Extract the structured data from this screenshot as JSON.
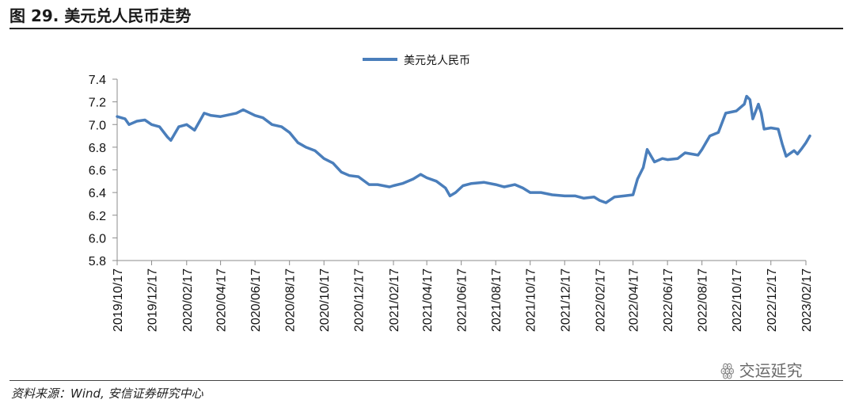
{
  "figure": {
    "title": "图 29. 美元兑人民币走势",
    "source": "资料来源：Wind, 安信证券研究中心",
    "watermark": "交运延究"
  },
  "colors": {
    "series": "#4a7ebb",
    "axis": "#8c8c8c",
    "text": "#111111"
  },
  "chart_data": {
    "type": "line",
    "title": "",
    "xlabel": "",
    "ylabel": "",
    "ylim": [
      5.8,
      7.4
    ],
    "grid": false,
    "legend": "top-center",
    "y_ticks": [
      5.8,
      6.0,
      6.2,
      6.4,
      6.6,
      6.8,
      7.0,
      7.2,
      7.4
    ],
    "x_ticks": [
      "2019/10/17",
      "2019/12/17",
      "2020/02/17",
      "2020/04/17",
      "2020/06/17",
      "2020/08/17",
      "2020/10/17",
      "2020/12/17",
      "2021/02/17",
      "2021/04/17",
      "2021/06/17",
      "2021/08/17",
      "2021/10/17",
      "2021/12/17",
      "2022/02/17",
      "2022/04/17",
      "2022/06/17",
      "2022/08/17",
      "2022/10/17",
      "2022/12/17",
      "2023/02/17"
    ],
    "series": [
      {
        "name": "美元兑人民币",
        "points": [
          [
            "2019-10-17",
            7.07
          ],
          [
            "2019-10-31",
            7.05
          ],
          [
            "2019-11-07",
            7.0
          ],
          [
            "2019-11-21",
            7.03
          ],
          [
            "2019-12-05",
            7.04
          ],
          [
            "2019-12-17",
            7.0
          ],
          [
            "2019-12-31",
            6.98
          ],
          [
            "2020-01-14",
            6.89
          ],
          [
            "2020-01-20",
            6.86
          ],
          [
            "2020-02-03",
            6.98
          ],
          [
            "2020-02-17",
            7.0
          ],
          [
            "2020-03-02",
            6.95
          ],
          [
            "2020-03-19",
            7.1
          ],
          [
            "2020-03-31",
            7.08
          ],
          [
            "2020-04-17",
            7.07
          ],
          [
            "2020-05-15",
            7.1
          ],
          [
            "2020-05-27",
            7.13
          ],
          [
            "2020-06-17",
            7.08
          ],
          [
            "2020-07-01",
            7.06
          ],
          [
            "2020-07-17",
            7.0
          ],
          [
            "2020-08-03",
            6.98
          ],
          [
            "2020-08-17",
            6.93
          ],
          [
            "2020-09-01",
            6.84
          ],
          [
            "2020-09-15",
            6.8
          ],
          [
            "2020-10-01",
            6.77
          ],
          [
            "2020-10-17",
            6.7
          ],
          [
            "2020-11-02",
            6.66
          ],
          [
            "2020-11-17",
            6.58
          ],
          [
            "2020-12-01",
            6.55
          ],
          [
            "2020-12-17",
            6.54
          ],
          [
            "2021-01-05",
            6.47
          ],
          [
            "2021-01-20",
            6.47
          ],
          [
            "2021-02-10",
            6.45
          ],
          [
            "2021-02-17",
            6.46
          ],
          [
            "2021-03-05",
            6.48
          ],
          [
            "2021-03-24",
            6.52
          ],
          [
            "2021-04-06",
            6.56
          ],
          [
            "2021-04-17",
            6.53
          ],
          [
            "2021-05-04",
            6.5
          ],
          [
            "2021-05-20",
            6.44
          ],
          [
            "2021-05-28",
            6.37
          ],
          [
            "2021-06-07",
            6.4
          ],
          [
            "2021-06-20",
            6.46
          ],
          [
            "2021-07-05",
            6.48
          ],
          [
            "2021-07-27",
            6.49
          ],
          [
            "2021-08-17",
            6.47
          ],
          [
            "2021-09-01",
            6.45
          ],
          [
            "2021-09-20",
            6.47
          ],
          [
            "2021-10-04",
            6.44
          ],
          [
            "2021-10-17",
            6.4
          ],
          [
            "2021-11-05",
            6.4
          ],
          [
            "2021-11-25",
            6.38
          ],
          [
            "2021-12-17",
            6.37
          ],
          [
            "2022-01-05",
            6.37
          ],
          [
            "2022-01-20",
            6.35
          ],
          [
            "2022-02-07",
            6.36
          ],
          [
            "2022-02-17",
            6.33
          ],
          [
            "2022-02-28",
            6.31
          ],
          [
            "2022-03-15",
            6.36
          ],
          [
            "2022-04-01",
            6.37
          ],
          [
            "2022-04-17",
            6.38
          ],
          [
            "2022-04-25",
            6.52
          ],
          [
            "2022-05-05",
            6.62
          ],
          [
            "2022-05-12",
            6.78
          ],
          [
            "2022-05-25",
            6.67
          ],
          [
            "2022-06-08",
            6.7
          ],
          [
            "2022-06-17",
            6.69
          ],
          [
            "2022-07-05",
            6.7
          ],
          [
            "2022-07-18",
            6.75
          ],
          [
            "2022-08-10",
            6.73
          ],
          [
            "2022-08-17",
            6.78
          ],
          [
            "2022-08-31",
            6.9
          ],
          [
            "2022-09-15",
            6.93
          ],
          [
            "2022-09-28",
            7.1
          ],
          [
            "2022-10-17",
            7.12
          ],
          [
            "2022-10-31",
            7.18
          ],
          [
            "2022-11-04",
            7.25
          ],
          [
            "2022-11-10",
            7.22
          ],
          [
            "2022-11-15",
            7.05
          ],
          [
            "2022-11-25",
            7.18
          ],
          [
            "2022-11-30",
            7.1
          ],
          [
            "2022-12-05",
            6.96
          ],
          [
            "2022-12-17",
            6.97
          ],
          [
            "2022-12-30",
            6.96
          ],
          [
            "2023-01-06",
            6.83
          ],
          [
            "2023-01-13",
            6.72
          ],
          [
            "2023-01-27",
            6.77
          ],
          [
            "2023-02-02",
            6.74
          ],
          [
            "2023-02-10",
            6.79
          ],
          [
            "2023-02-17",
            6.84
          ],
          [
            "2023-02-24",
            6.9
          ]
        ]
      }
    ]
  }
}
